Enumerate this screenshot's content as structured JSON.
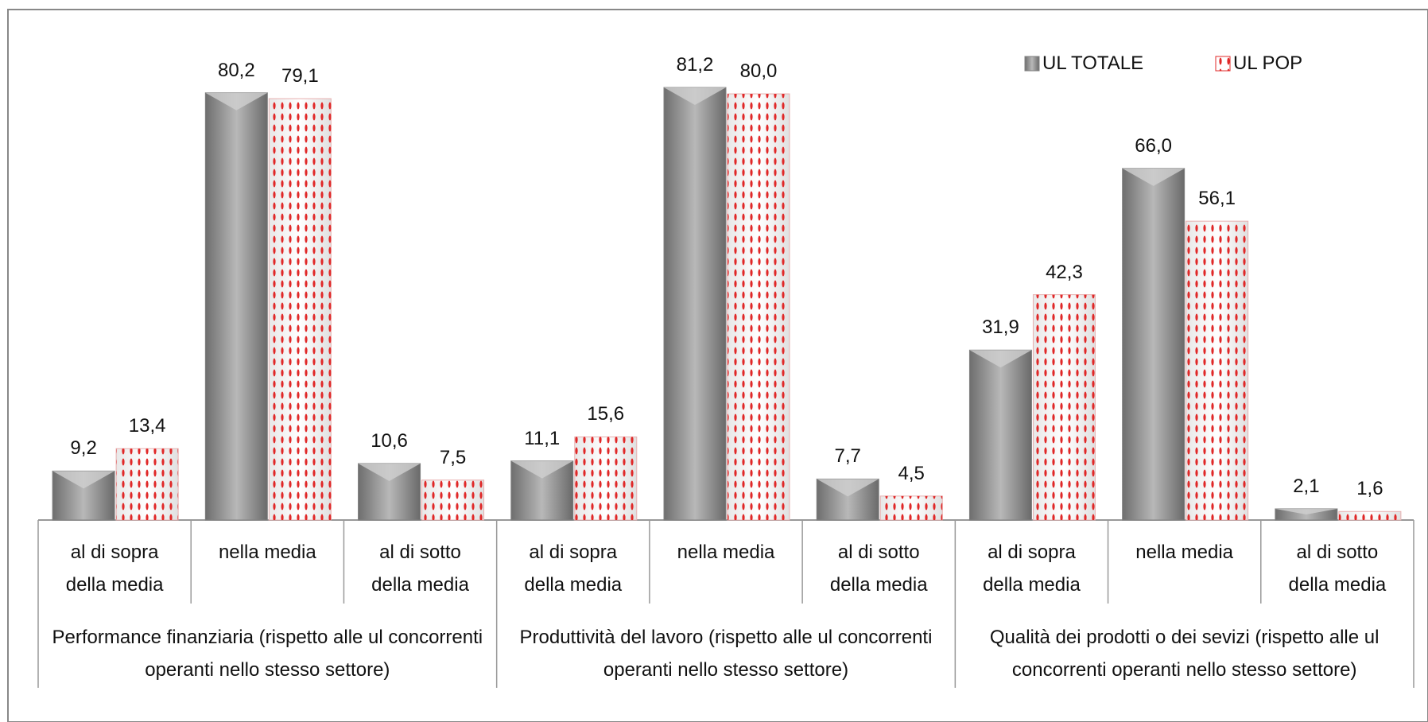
{
  "chart_data": {
    "type": "bar",
    "groups": [
      "Performance finanziaria (rispetto alle ul concorrenti operanti nello stesso settore)",
      "Produttività del lavoro (rispetto alle ul concorrenti operanti nello stesso settore)",
      "Qualità dei prodotti o dei sevizi (rispetto alle ul concorrenti operanti nello stesso settore)"
    ],
    "categories": [
      "al di sopra della media",
      "nella media",
      "al di sotto della media",
      "al di sopra della media",
      "nella media",
      "al di sotto della media",
      "al di sopra della media",
      "nella media",
      "al di sotto della media"
    ],
    "series": [
      {
        "name": "UL TOTALE",
        "color": "#808080",
        "values": [
          9.2,
          80.2,
          10.6,
          11.1,
          81.2,
          7.7,
          31.9,
          66.0,
          2.1
        ],
        "value_labels": [
          "9,2",
          "80,2",
          "10,6",
          "11,1",
          "81,2",
          "7,7",
          "31,9",
          "66,0",
          "2,1"
        ]
      },
      {
        "name": "UL POP",
        "color": "#e02828",
        "values": [
          13.4,
          79.1,
          7.5,
          15.6,
          80.0,
          4.5,
          42.3,
          56.1,
          1.6
        ],
        "value_labels": [
          "13,4",
          "79,1",
          "7,5",
          "15,6",
          "80,0",
          "4,5",
          "42,3",
          "56,1",
          "1,6"
        ]
      }
    ],
    "legend": "top-right"
  }
}
